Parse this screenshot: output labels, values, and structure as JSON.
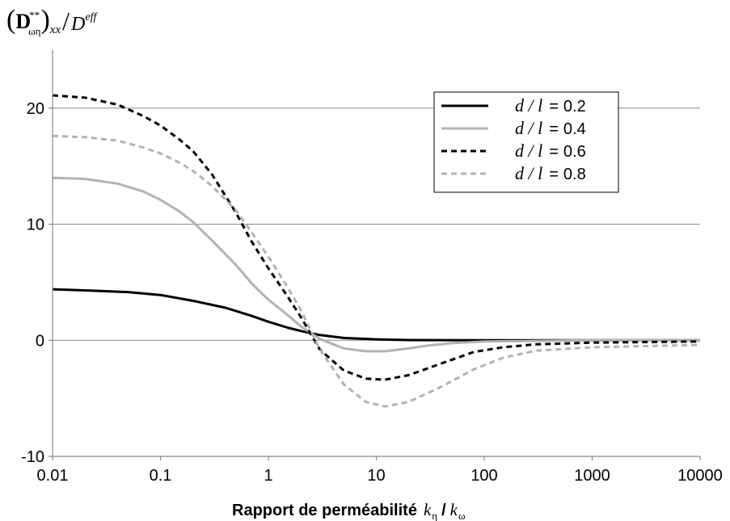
{
  "chart_data": {
    "type": "line",
    "title": "",
    "ylabel": {
      "paren_left": "(",
      "symbol": "D",
      "subscript": "ωη",
      "superscript": "**",
      "paren_right": ")",
      "outer_subscript": "xx",
      "slash": "/",
      "denominator": "D",
      "denominator_superscript": "eff"
    },
    "xlabel": {
      "text": "Rapport de perméabilité",
      "numerator": "k",
      "numerator_sub": "η",
      "slash": "/",
      "denominator": "k",
      "denominator_sub": "ω"
    },
    "x_scale": "log",
    "xlim": [
      0.01,
      10000
    ],
    "ylim": [
      -10,
      25
    ],
    "x_ticks": [
      0.01,
      0.1,
      1,
      10,
      100,
      1000,
      10000
    ],
    "x_tick_labels": [
      "0.01",
      "0.1",
      "1",
      "10",
      "100",
      "1000",
      "10000"
    ],
    "y_ticks": [
      -10,
      0,
      10,
      20
    ],
    "y_tick_labels": [
      "-10",
      "0",
      "10",
      "20"
    ],
    "grid": "horizontal-y-gridlines",
    "legend_position": "top-right",
    "legend_var": "d / l",
    "legend_eq": "=",
    "series": [
      {
        "name": "0.2",
        "color": "#000000",
        "dash": "solid",
        "x": [
          0.01,
          0.02,
          0.05,
          0.1,
          0.2,
          0.4,
          0.7,
          1,
          1.5,
          2,
          3,
          5,
          10,
          20,
          100,
          1000,
          10000
        ],
        "y": [
          4.4,
          4.3,
          4.15,
          3.9,
          3.4,
          2.8,
          2.1,
          1.6,
          1.1,
          0.8,
          0.45,
          0.2,
          0.08,
          0.02,
          0.0,
          0.0,
          0.0
        ]
      },
      {
        "name": "0.4",
        "color": "#b3b3b3",
        "dash": "solid",
        "x": [
          0.01,
          0.02,
          0.04,
          0.07,
          0.1,
          0.15,
          0.2,
          0.3,
          0.5,
          0.7,
          1,
          1.5,
          2,
          3,
          5,
          8,
          12,
          20,
          30,
          50,
          100,
          1000,
          10000
        ],
        "y": [
          14.0,
          13.9,
          13.5,
          12.8,
          12.1,
          11.1,
          10.2,
          8.6,
          6.5,
          4.9,
          3.5,
          2.2,
          1.2,
          0.1,
          -0.7,
          -0.95,
          -0.95,
          -0.7,
          -0.45,
          -0.25,
          -0.1,
          0.0,
          0.0
        ]
      },
      {
        "name": "0.6",
        "color": "#000000",
        "dash": "dash",
        "x": [
          0.01,
          0.02,
          0.04,
          0.07,
          0.1,
          0.15,
          0.2,
          0.3,
          0.5,
          0.7,
          1,
          1.5,
          2,
          3,
          5,
          8,
          12,
          20,
          40,
          80,
          150,
          300,
          1000,
          10000
        ],
        "y": [
          21.1,
          20.9,
          20.3,
          19.3,
          18.5,
          17.3,
          16.3,
          14.3,
          11.0,
          8.5,
          6.2,
          3.8,
          2.0,
          -0.8,
          -2.6,
          -3.3,
          -3.4,
          -3.0,
          -2.0,
          -1.0,
          -0.6,
          -0.35,
          -0.2,
          -0.1
        ]
      },
      {
        "name": "0.8",
        "color": "#b3b3b3",
        "dash": "dash",
        "x": [
          0.01,
          0.02,
          0.04,
          0.07,
          0.1,
          0.15,
          0.2,
          0.3,
          0.5,
          0.7,
          1,
          1.5,
          2,
          3,
          5,
          8,
          12,
          20,
          40,
          80,
          150,
          300,
          1000,
          10000
        ],
        "y": [
          17.6,
          17.5,
          17.2,
          16.6,
          16.1,
          15.3,
          14.6,
          13.3,
          11.2,
          9.3,
          7.2,
          4.6,
          2.6,
          -0.8,
          -3.8,
          -5.3,
          -5.7,
          -5.3,
          -4.0,
          -2.5,
          -1.5,
          -0.9,
          -0.6,
          -0.4
        ]
      }
    ]
  }
}
